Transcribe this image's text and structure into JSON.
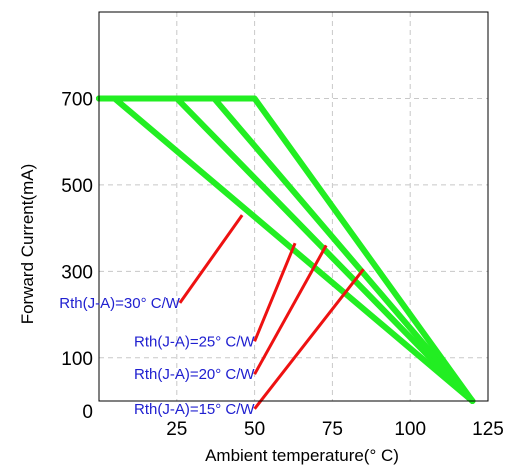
{
  "chart_data": {
    "type": "line",
    "xlabel": "Ambient temperature(° C)",
    "ylabel": "Forward Current(mA)",
    "xlim": [
      0,
      125
    ],
    "ylim": [
      0,
      900
    ],
    "xticks": [
      "0",
      "25",
      "50",
      "75",
      "100",
      "125"
    ],
    "yticks": [
      "100",
      "300",
      "500",
      "700"
    ],
    "grid": true,
    "series": [
      {
        "values": [
          [
            0,
            700
          ],
          [
            5,
            700
          ],
          [
            120,
            0
          ]
        ]
      },
      {
        "values": [
          [
            0,
            700
          ],
          [
            25,
            700
          ],
          [
            120,
            0
          ]
        ]
      },
      {
        "values": [
          [
            0,
            700
          ],
          [
            37,
            700
          ],
          [
            120,
            0
          ]
        ]
      },
      {
        "values": [
          [
            0,
            700
          ],
          [
            50,
            700
          ],
          [
            120,
            0
          ]
        ]
      }
    ],
    "annotations": [
      {
        "text": "Rth(J-A)=30° C/W",
        "at": [
          46,
          430
        ],
        "label_at": [
          26,
          227
        ]
      },
      {
        "text": "Rth(J-A)=25° C/W",
        "at": [
          63,
          365
        ],
        "label_at": [
          50,
          138
        ]
      },
      {
        "text": "Rth(J-A)=20° C/W",
        "at": [
          73,
          360
        ],
        "label_at": [
          50,
          62
        ]
      },
      {
        "text": "Rth(J-A)=15° C/W",
        "at": [
          85,
          305
        ],
        "label_at": [
          50,
          -18
        ]
      }
    ],
    "colors": {
      "series": "#22ee22",
      "annotation_line": "#ee1111",
      "annotation_text": "#2020d0",
      "grid": "#c8c8c8"
    }
  }
}
